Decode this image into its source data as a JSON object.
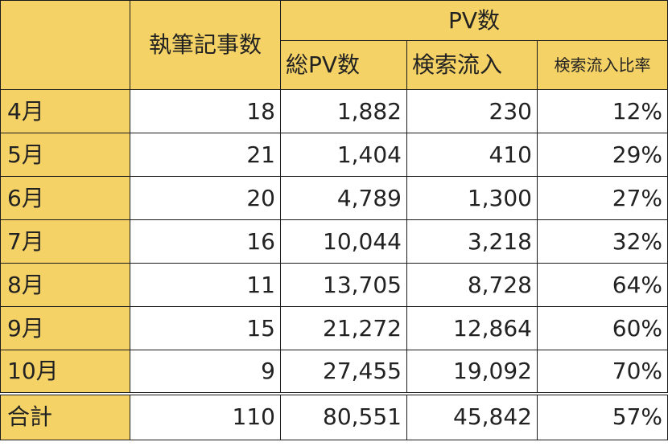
{
  "header": {
    "articles": "執筆記事数",
    "pv_group": "PV数",
    "total_pv": "総PV数",
    "search_inflow": "検索流入",
    "search_ratio": "検索流入比率"
  },
  "rows": [
    {
      "month": "4月",
      "articles": "18",
      "total_pv": "1,882",
      "search": "230",
      "ratio": "12%"
    },
    {
      "month": "5月",
      "articles": "21",
      "total_pv": "1,404",
      "search": "410",
      "ratio": "29%"
    },
    {
      "month": "6月",
      "articles": "20",
      "total_pv": "4,789",
      "search": "1,300",
      "ratio": "27%"
    },
    {
      "month": "7月",
      "articles": "16",
      "total_pv": "10,044",
      "search": "3,218",
      "ratio": "32%"
    },
    {
      "month": "8月",
      "articles": "11",
      "total_pv": "13,705",
      "search": "8,728",
      "ratio": "64%"
    },
    {
      "month": "9月",
      "articles": "15",
      "total_pv": "21,272",
      "search": "12,864",
      "ratio": "60%"
    },
    {
      "month": "10月",
      "articles": "9",
      "total_pv": "27,455",
      "search": "19,092",
      "ratio": "70%"
    }
  ],
  "total": {
    "label": "合計",
    "articles": "110",
    "total_pv": "80,551",
    "search": "45,842",
    "ratio": "57%"
  },
  "colors": {
    "header_fill": "#f5d266",
    "cell_fill": "#ffffff",
    "border": "#1a1a1a",
    "text": "#222222"
  }
}
